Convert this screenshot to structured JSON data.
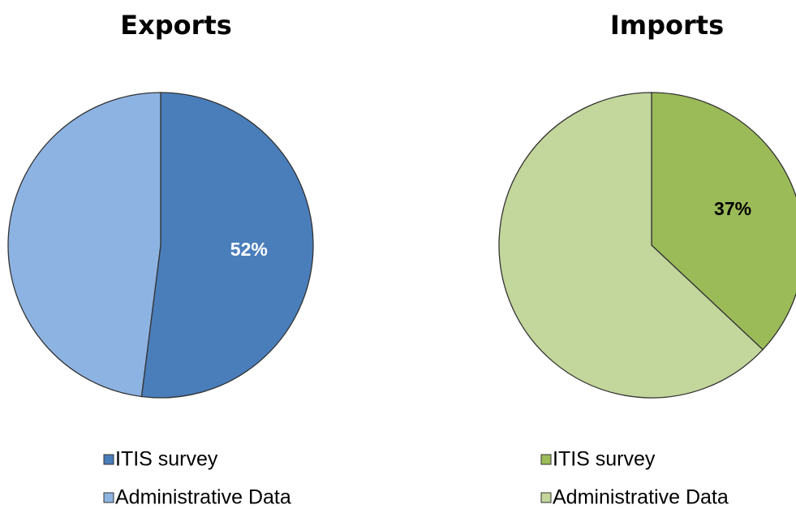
{
  "chart_data": [
    {
      "type": "pie",
      "title": "Exports",
      "categories": [
        "ITIS survey",
        "Administrative Data"
      ],
      "values": [
        52,
        48
      ],
      "value_labels": [
        "52%",
        null
      ],
      "colors": [
        "#4a7ebb",
        "#8db3e2"
      ],
      "label_color": "#ffffff"
    },
    {
      "type": "pie",
      "title": "Imports",
      "categories": [
        "ITIS survey",
        "Administrative Data"
      ],
      "values": [
        37,
        63
      ],
      "value_labels": [
        "37%",
        null
      ],
      "colors": [
        "#9bbb59",
        "#c3d69b"
      ],
      "label_color": "#000000"
    }
  ]
}
